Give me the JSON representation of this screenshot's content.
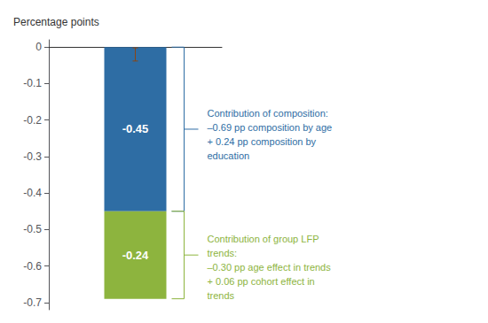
{
  "chart_data": {
    "type": "bar",
    "stacked": true,
    "ylabel": "Percentage points",
    "categories": [
      null
    ],
    "series": [
      {
        "color": "#2E6DA4",
        "values": [
          -0.45
        ],
        "error_bar": {
          "y": -0.02,
          "err": 0.018,
          "color": "#8B4513"
        }
      },
      {
        "color": "#8DB43E",
        "values": [
          -0.24
        ]
      }
    ],
    "data_labels": true,
    "ylim": [
      -0.72,
      0.02
    ],
    "yticks": [
      0,
      -0.1,
      -0.2,
      -0.3,
      -0.4,
      -0.5,
      -0.6,
      -0.7
    ],
    "grid": false,
    "tick_labels": "y",
    "annotations": [
      {
        "text": "Contribution of composition:\n–0.69 pp composition by age\n+ 0.24 pp composition by\neducation",
        "color": "#2E6DA4"
      },
      {
        "text": "Contribution of group LFP\ntrends:\n–0.30 pp age effect in trends\n+ 0.06 pp cohort effect in\ntrends",
        "color": "#8DB43E"
      }
    ]
  }
}
